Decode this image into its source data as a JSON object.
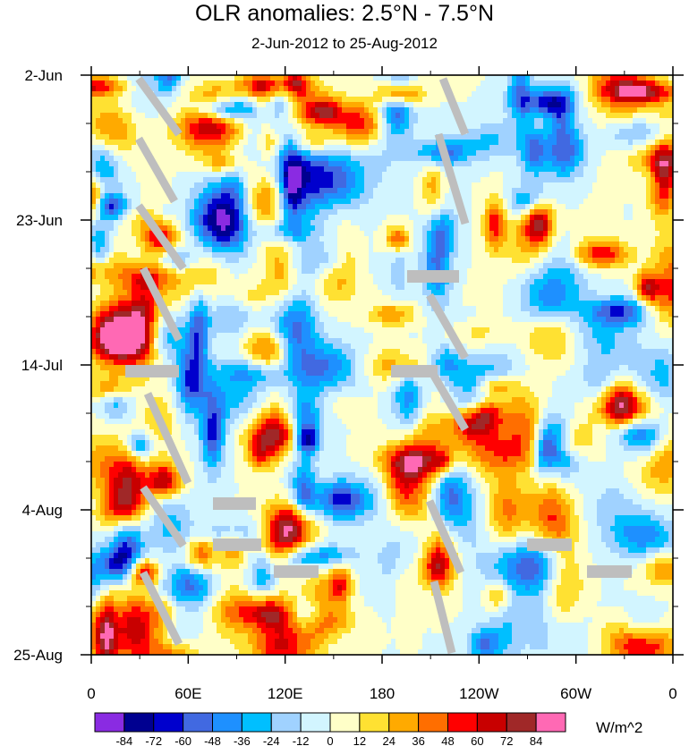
{
  "chart_data": {
    "type": "heatmap",
    "title": "OLR anomalies: 2.5°N - 7.5°N",
    "subtitle": "2-Jun-2012 to 25-Aug-2012",
    "x_axis": {
      "description": "longitude",
      "tick_labels": [
        "0",
        "60E",
        "120E",
        "180",
        "120W",
        "60W",
        "0"
      ],
      "tick_values_deg_east": [
        0,
        60,
        120,
        180,
        240,
        300,
        360
      ],
      "range": [
        0,
        360
      ]
    },
    "y_axis": {
      "description": "date (time increases downward)",
      "tick_labels": [
        "2-Jun",
        "23-Jun",
        "14-Jul",
        "4-Aug",
        "25-Aug"
      ],
      "tick_values_day_index": [
        0,
        21,
        42,
        63,
        84
      ],
      "range": [
        0,
        84
      ],
      "reversed": true
    },
    "colorbar": {
      "units": "W/m^2",
      "levels": [
        -84,
        -72,
        -60,
        -48,
        -36,
        -24,
        -12,
        0,
        12,
        24,
        36,
        48,
        60,
        72,
        84
      ],
      "colors": [
        "#8a2be2",
        "#000090",
        "#0000cd",
        "#4169e1",
        "#1e90ff",
        "#00bfff",
        "#a0d2ff",
        "#d2f5ff",
        "#ffffc8",
        "#ffe132",
        "#ffaa00",
        "#ff6e00",
        "#ff0000",
        "#c80000",
        "#a02828",
        "#ff69b4"
      ]
    }
  }
}
